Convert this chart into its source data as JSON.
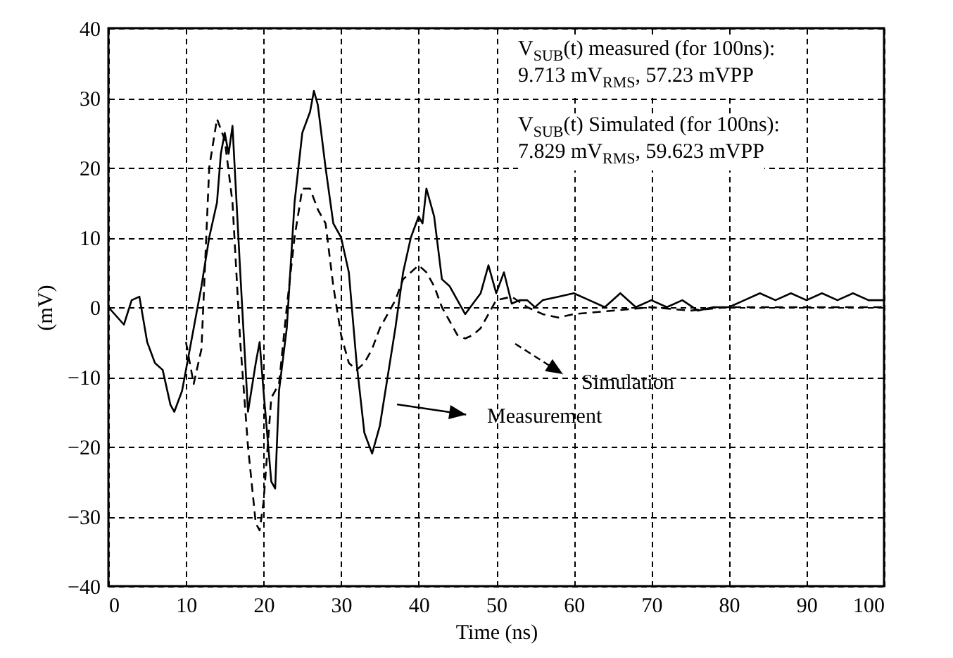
{
  "chart_data": {
    "type": "line",
    "xlabel": "Time (ns)",
    "ylabel": "(mV)",
    "xlim": [
      0,
      100
    ],
    "xticks": [
      0,
      10,
      20,
      30,
      40,
      50,
      60,
      70,
      80,
      90,
      100
    ],
    "ylim": [
      -40,
      40
    ],
    "yticks": [
      -40,
      -30,
      -20,
      -10,
      0,
      10,
      20,
      30,
      40
    ],
    "grid": true,
    "marker": "none",
    "series": [
      {
        "color": "#000000",
        "line_style": "solid",
        "x": [
          0,
          2,
          3,
          4,
          5,
          6,
          7,
          8,
          8.5,
          9.5,
          11,
          12,
          13,
          14,
          14.5,
          15,
          15.5,
          16,
          17,
          18,
          19,
          19.5,
          20,
          21,
          21.5,
          22,
          23,
          24,
          25,
          26,
          26.5,
          27,
          28,
          29,
          30,
          31,
          32,
          33,
          34,
          35,
          36,
          37,
          38,
          39,
          40,
          40.5,
          41,
          42,
          43,
          44,
          45,
          46,
          47,
          48,
          49,
          50,
          51,
          52,
          53,
          54,
          55,
          56,
          58,
          60,
          62,
          64,
          66,
          68,
          70,
          72,
          74,
          76,
          78,
          80,
          82,
          84,
          86,
          88,
          90,
          92,
          94,
          96,
          98,
          100
        ],
        "values": [
          0,
          -2.5,
          1,
          1.5,
          -5,
          -8,
          -9,
          -14,
          -15,
          -12,
          -3,
          3,
          10,
          15,
          22,
          25,
          22,
          26,
          5,
          -15,
          -8,
          -5,
          -12,
          -25,
          -26,
          -12,
          -3,
          15,
          25,
          28,
          31,
          29,
          20,
          12,
          10,
          5,
          -8,
          -18,
          -21,
          -17,
          -10,
          -3,
          5,
          10,
          13,
          12,
          17,
          13,
          4,
          3,
          1,
          -1,
          0.5,
          2,
          6,
          2,
          5,
          0.5,
          1,
          1,
          0,
          1,
          1.5,
          2,
          1,
          0,
          2,
          0,
          1,
          0,
          1,
          -0.5,
          0,
          0,
          1,
          2,
          1,
          2,
          1,
          2,
          1,
          2,
          1,
          1
        ]
      },
      {
        "color": "#000000",
        "line_style": "dashed",
        "x": [
          10,
          11,
          12,
          13,
          14,
          15,
          16,
          17,
          18,
          19,
          19.5,
          20,
          21,
          22,
          23,
          24,
          25,
          26,
          27,
          28,
          29,
          30,
          31,
          32,
          33,
          34,
          35,
          36,
          37,
          38,
          39,
          40,
          41,
          42,
          43,
          44,
          45,
          46,
          47,
          48,
          49,
          50,
          52,
          54,
          56,
          58,
          60,
          65,
          70,
          75,
          80,
          90,
          100
        ],
        "values": [
          -5,
          -11,
          -6,
          20,
          27,
          24,
          15,
          -5,
          -20,
          -31,
          -32,
          -28,
          -13,
          -11,
          0,
          10,
          17,
          17,
          14,
          12,
          3,
          -4,
          -8,
          -9,
          -8,
          -6,
          -3,
          -1,
          1,
          4,
          5,
          6,
          5,
          3,
          0,
          -2,
          -4,
          -4.5,
          -4,
          -3,
          -1,
          1,
          1.5,
          0,
          -1,
          -1.5,
          -1,
          -0.5,
          0,
          -0.5,
          0,
          0,
          0
        ]
      }
    ],
    "annotations": [
      "V$_{SUB}$(t) measured (for 100ns):",
      "9.713 mV$_{RMS}$, 57.23 mVPP",
      "V$_{SUB}$(t) Simulated (for 100ns):",
      "7.829 mV$_{RMS}$, 59.623 mVPP",
      "Measurement",
      "Simulation"
    ]
  }
}
